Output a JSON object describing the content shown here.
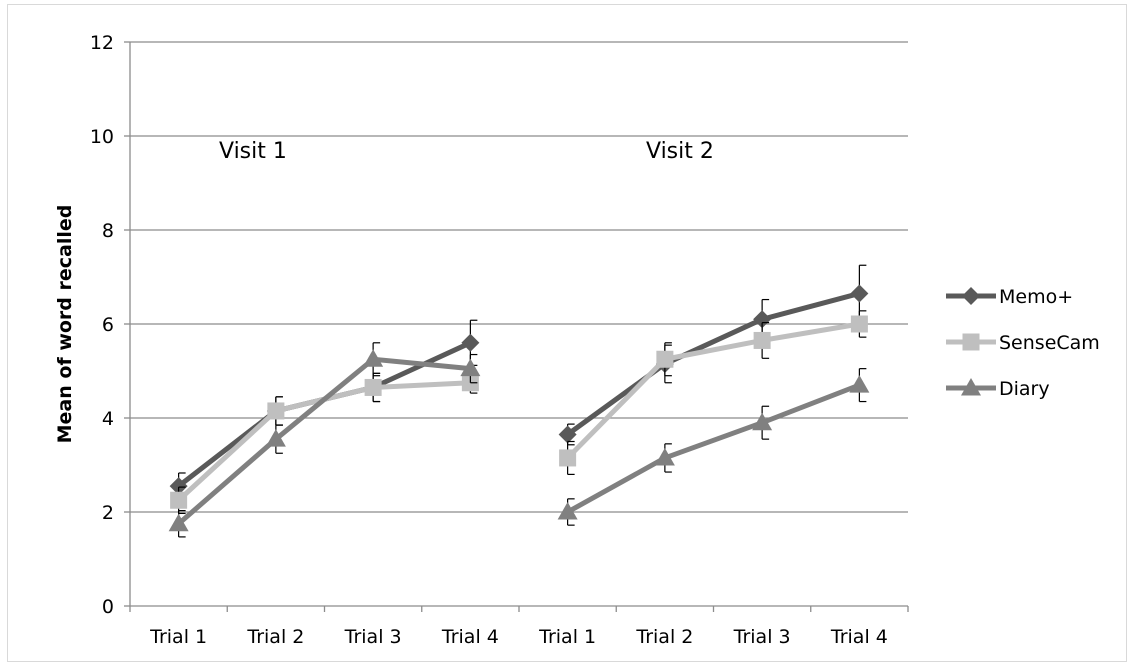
{
  "chart_data": {
    "type": "line",
    "title": "",
    "xlabel": "",
    "ylabel": "Mean of word recalled",
    "ylim": [
      0,
      12
    ],
    "yticks": [
      0,
      2,
      4,
      6,
      8,
      10,
      12
    ],
    "grid": true,
    "legend_position": "right",
    "annotations": [
      "Visit 1",
      "Visit 2"
    ],
    "categories": [
      "Trial 1",
      "Trial 2",
      "Trial 3",
      "Trial 4",
      "Trial 1",
      "Trial 2",
      "Trial 3",
      "Trial 4"
    ],
    "series": [
      {
        "name": "Memo+",
        "color": "#595959",
        "marker": "diamond",
        "segments": [
          [
            0,
            3
          ],
          [
            4,
            7
          ]
        ],
        "values": [
          2.55,
          4.15,
          4.65,
          5.6,
          3.65,
          5.15,
          6.1,
          6.65
        ],
        "errors": [
          0.28,
          0.3,
          0.3,
          0.48,
          0.22,
          0.4,
          0.42,
          0.6
        ]
      },
      {
        "name": "SenseCam",
        "color": "#bfbfbf",
        "marker": "square",
        "segments": [
          [
            0,
            3
          ],
          [
            4,
            7
          ]
        ],
        "values": [
          2.25,
          4.15,
          4.65,
          4.75,
          3.15,
          5.25,
          5.65,
          6.0
        ],
        "errors": [
          0.28,
          0.3,
          0.3,
          0.22,
          0.35,
          0.35,
          0.38,
          0.28
        ]
      },
      {
        "name": "Diary",
        "color": "#808080",
        "marker": "triangle",
        "segments": [
          [
            0,
            3
          ],
          [
            4,
            7
          ]
        ],
        "values": [
          1.75,
          3.55,
          5.25,
          5.05,
          2.0,
          3.15,
          3.9,
          4.7
        ],
        "errors": [
          0.28,
          0.3,
          0.35,
          0.3,
          0.28,
          0.3,
          0.35,
          0.35
        ]
      }
    ]
  }
}
